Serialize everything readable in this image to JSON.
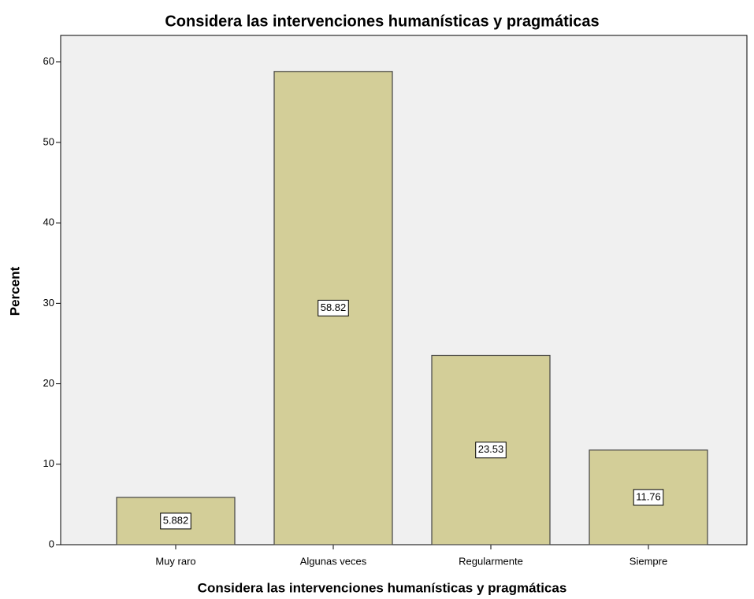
{
  "chart_data": {
    "type": "bar",
    "title": "Considera las intervenciones humanísticas y pragmáticas",
    "x_label": "Considera las intervenciones humanísticas y pragmáticas",
    "y_label": "Percent",
    "categories": [
      "Muy raro",
      "Algunas veces",
      "Regularmente",
      "Siempre"
    ],
    "values": [
      5.882,
      58.82,
      23.53,
      11.76
    ],
    "color": "#d3ce98",
    "ylim": [
      0,
      63.3
    ],
    "yticks": [
      0,
      10,
      20,
      30,
      40,
      50,
      60
    ],
    "grid": false
  }
}
